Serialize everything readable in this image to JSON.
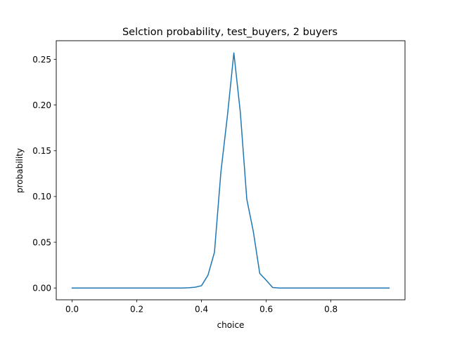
{
  "chart_data": {
    "type": "line",
    "title": "Selction probability, test_buyers, 2 buyers",
    "xlabel": "choice",
    "ylabel": "probability",
    "xlim": [
      -0.049,
      1.029
    ],
    "ylim": [
      -0.0129,
      0.2703
    ],
    "xticks": [
      0.0,
      0.2,
      0.4,
      0.6,
      0.8
    ],
    "xtick_labels": [
      "0.0",
      "0.2",
      "0.4",
      "0.6",
      "0.8"
    ],
    "yticks": [
      0.0,
      0.05,
      0.1,
      0.15,
      0.2,
      0.25
    ],
    "ytick_labels": [
      "0.00",
      "0.05",
      "0.10",
      "0.15",
      "0.20",
      "0.25"
    ],
    "grid": false,
    "colors": {
      "line": "#1f77b4",
      "axes": "#000000",
      "background": "#ffffff"
    },
    "series": [
      {
        "x": [
          0.0,
          0.02,
          0.04,
          0.06,
          0.08,
          0.1,
          0.12,
          0.14,
          0.16,
          0.18,
          0.2,
          0.22,
          0.24,
          0.26,
          0.28,
          0.3,
          0.32,
          0.34,
          0.36,
          0.38,
          0.4,
          0.42,
          0.44,
          0.46,
          0.48,
          0.5,
          0.52,
          0.54,
          0.56,
          0.58,
          0.6,
          0.62,
          0.64,
          0.66,
          0.68,
          0.7,
          0.72,
          0.74,
          0.76,
          0.78,
          0.8,
          0.82,
          0.84,
          0.86,
          0.88,
          0.9,
          0.92,
          0.94,
          0.96,
          0.98
        ],
        "y": [
          0,
          0,
          0,
          0,
          0,
          0,
          0,
          0,
          0,
          0,
          0,
          0,
          0,
          0,
          0,
          0,
          0,
          0,
          0.0002,
          0.0008,
          0.0025,
          0.014,
          0.039,
          0.127,
          0.188,
          0.257,
          0.192,
          0.097,
          0.062,
          0.016,
          0.0085,
          0.0005,
          0,
          0,
          0,
          0,
          0,
          0,
          0,
          0,
          0,
          0,
          0,
          0,
          0,
          0,
          0,
          0,
          0,
          0
        ]
      }
    ]
  }
}
